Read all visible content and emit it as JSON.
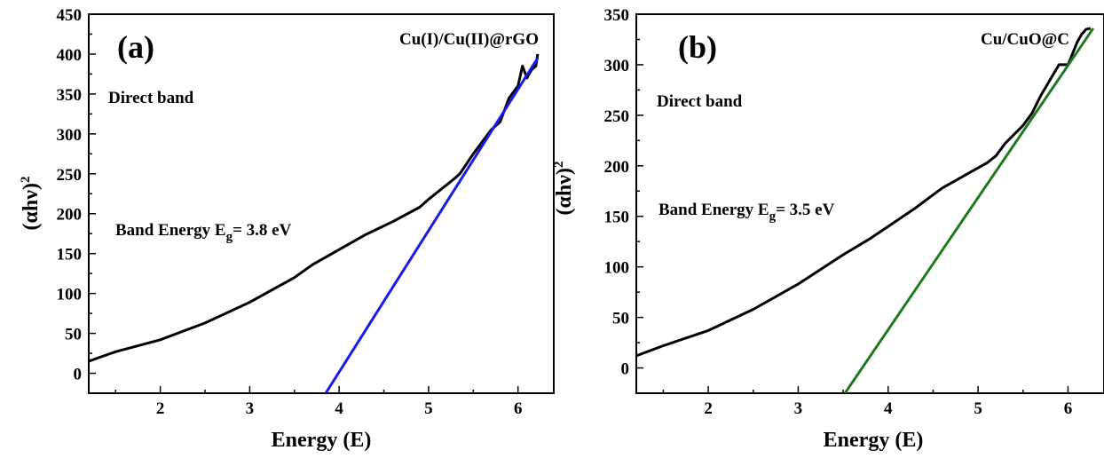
{
  "chart_data": [
    {
      "type": "line",
      "panel_label": "(a)",
      "legend": "Cu(I)/Cu(II)@rGO",
      "annotations": {
        "band_type": "Direct band",
        "band_energy_prefix": "Band Energy E",
        "band_energy_sub": "g",
        "band_energy_suffix": "= 3.8 eV"
      },
      "xlabel": "Energy (E)",
      "ylabel_base": "(αhν)",
      "ylabel_sup": "2",
      "xlim": [
        1.2,
        6.4
      ],
      "ylim": [
        -25,
        450
      ],
      "xticks": [
        2,
        3,
        4,
        5,
        6
      ],
      "yticks": [
        0,
        50,
        100,
        150,
        200,
        250,
        300,
        350,
        400,
        450
      ],
      "colors": {
        "data": "#000000",
        "fit": "#1a1ae6"
      },
      "series": [
        {
          "name": "",
          "x": [
            1.2,
            1.5,
            2.0,
            2.5,
            3.0,
            3.5,
            3.7,
            4.0,
            4.3,
            4.6,
            4.9,
            5.0,
            5.2,
            5.3,
            5.35,
            5.5,
            5.7,
            5.8,
            5.9,
            6.0,
            6.05,
            6.1,
            6.15,
            6.2,
            6.22
          ],
          "y": [
            15,
            27,
            42,
            63,
            89,
            120,
            136,
            155,
            174,
            190,
            208,
            218,
            236,
            245,
            250,
            275,
            305,
            315,
            345,
            360,
            385,
            370,
            380,
            385,
            400
          ]
        },
        {
          "name": "",
          "x": [
            3.85,
            6.22
          ],
          "y": [
            -25,
            395
          ]
        }
      ]
    },
    {
      "type": "line",
      "panel_label": "(b)",
      "legend": "Cu/CuO@C",
      "annotations": {
        "band_type": "Direct band",
        "band_energy_prefix": "Band Energy E",
        "band_energy_sub": "g",
        "band_energy_suffix": "= 3.5 eV"
      },
      "xlabel": "Energy (E)",
      "ylabel_base": "(αhν)",
      "ylabel_sup": "2",
      "xlim": [
        1.2,
        6.4
      ],
      "ylim": [
        -25,
        350
      ],
      "xticks": [
        2,
        3,
        4,
        5,
        6
      ],
      "yticks": [
        0,
        50,
        100,
        150,
        200,
        250,
        300,
        350
      ],
      "colors": {
        "data": "#000000",
        "fit": "#1e7a1e"
      },
      "series": [
        {
          "name": "",
          "x": [
            1.2,
            1.5,
            2.0,
            2.5,
            3.0,
            3.5,
            3.8,
            4.0,
            4.3,
            4.6,
            4.9,
            5.1,
            5.2,
            5.3,
            5.5,
            5.6,
            5.7,
            5.8,
            5.9,
            6.0,
            6.1,
            6.15,
            6.2,
            6.25
          ],
          "y": [
            12,
            22,
            37,
            58,
            83,
            112,
            128,
            140,
            158,
            178,
            193,
            203,
            210,
            222,
            240,
            252,
            270,
            285,
            300,
            300,
            322,
            330,
            335,
            336
          ]
        },
        {
          "name": "",
          "x": [
            3.52,
            6.28
          ],
          "y": [
            -25,
            336
          ]
        }
      ]
    }
  ]
}
